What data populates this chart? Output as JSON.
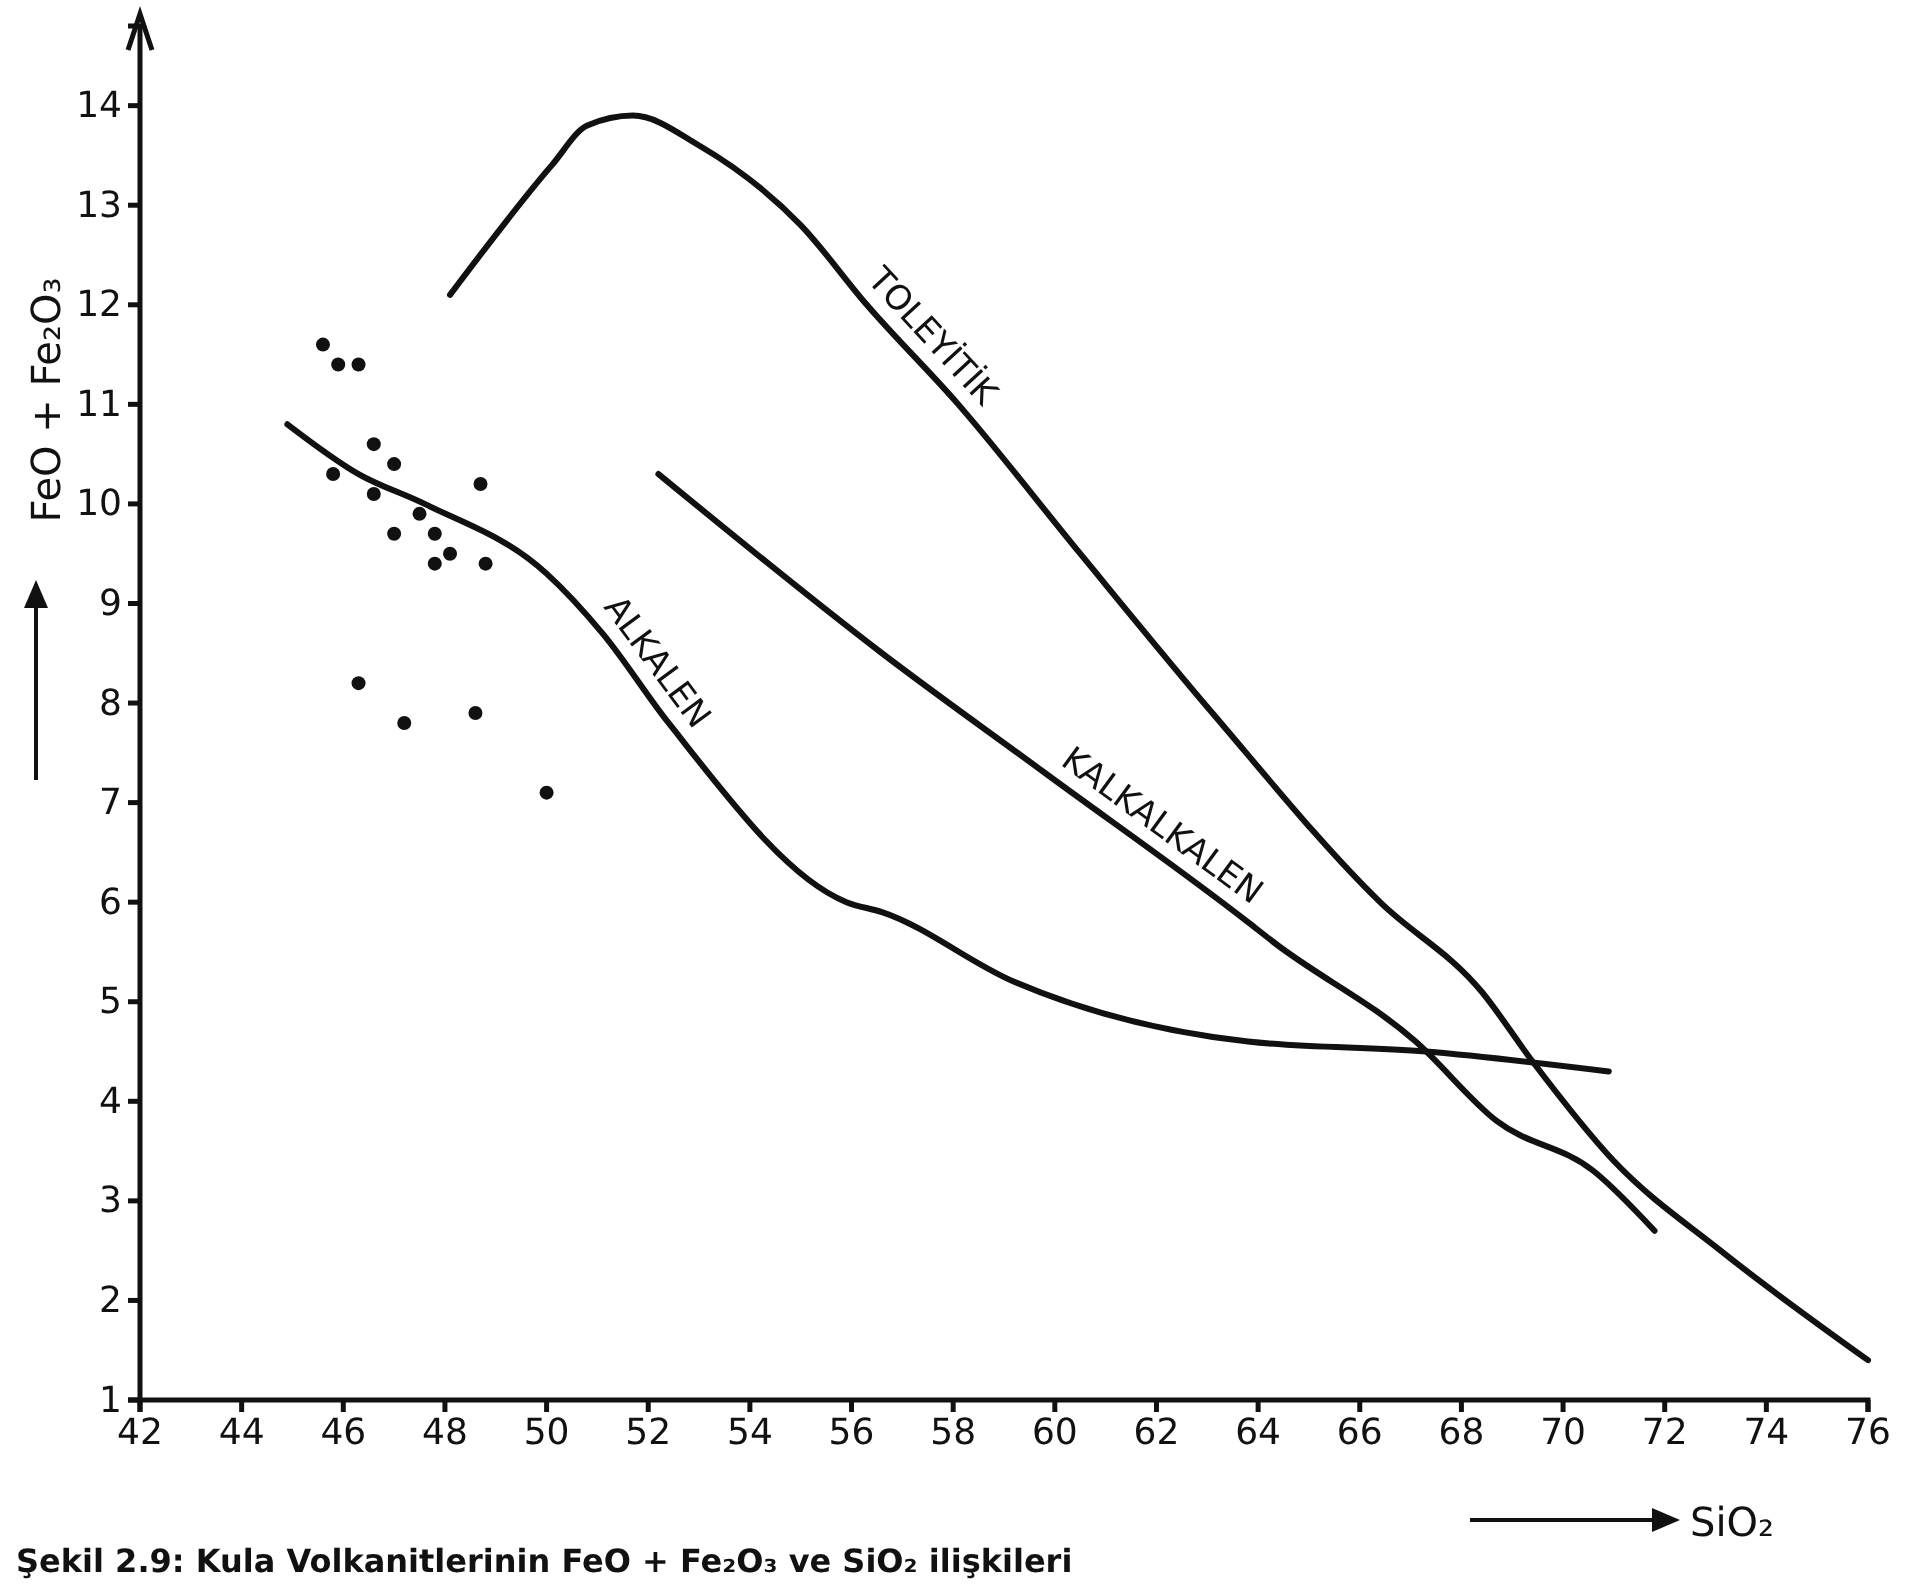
{
  "chart_data": {
    "type": "line",
    "xlabel": "SiO₂",
    "ylabel": "FeO + Fe₂O₃",
    "xlim": [
      42,
      76
    ],
    "ylim": [
      1,
      14.8
    ],
    "xticks": [
      42,
      44,
      46,
      48,
      50,
      52,
      54,
      56,
      58,
      60,
      62,
      64,
      66,
      68,
      70,
      72,
      74,
      76
    ],
    "yticks": [
      1,
      2,
      3,
      4,
      5,
      6,
      7,
      8,
      9,
      10,
      11,
      12,
      13,
      14
    ],
    "annotations": [
      "Şekil 2.9: Kula Volkanitlerinin FeO + Fe₂O₃ ve SiO₂ ilişkileri"
    ],
    "series": [
      {
        "name": "TOLEYİTİK",
        "color": "#111111",
        "x": [
          48.1,
          50.1,
          50.8,
          51.7,
          53.0,
          55.0,
          56.3,
          58.1,
          60.5,
          63.1,
          66.4,
          68.4,
          69.4,
          71.0,
          73.1,
          76.0
        ],
        "values": [
          12.1,
          13.4,
          13.8,
          13.9,
          13.6,
          12.8,
          12.0,
          11.0,
          9.5,
          7.9,
          6.0,
          5.1,
          4.4,
          3.4,
          2.5,
          1.4
        ]
      },
      {
        "name": "KALKALKALEN",
        "color": "#111111",
        "x": [
          52.2,
          56.6,
          59.8,
          63.8,
          64.3,
          67.1,
          68.7,
          70.6,
          71.8
        ],
        "values": [
          10.3,
          8.5,
          7.3,
          5.8,
          5.6,
          4.6,
          3.8,
          3.3,
          2.7
        ]
      },
      {
        "name": "ALKALEN",
        "color": "#111111",
        "x": [
          44.9,
          46.3,
          47.6,
          50.0,
          51.1,
          52.4,
          55.9,
          56.6,
          59.2,
          63.8,
          67.3,
          70.9
        ],
        "values": [
          10.8,
          10.3,
          10.0,
          9.3,
          8.7,
          7.8,
          6.0,
          5.9,
          5.2,
          4.6,
          4.5,
          4.3
        ]
      },
      {
        "type": "scatter",
        "color": "#111111",
        "x": [
          45.6,
          45.9,
          46.3,
          46.6,
          47.0,
          45.8,
          46.6,
          47.5,
          48.7,
          47.0,
          47.8,
          48.1,
          47.8,
          48.8,
          46.3,
          47.2,
          48.6,
          50.0
        ],
        "values": [
          11.6,
          11.4,
          11.4,
          10.6,
          10.4,
          10.3,
          10.1,
          9.9,
          10.2,
          9.7,
          9.7,
          9.5,
          9.4,
          9.4,
          8.2,
          7.8,
          7.9,
          7.1
        ]
      }
    ]
  }
}
